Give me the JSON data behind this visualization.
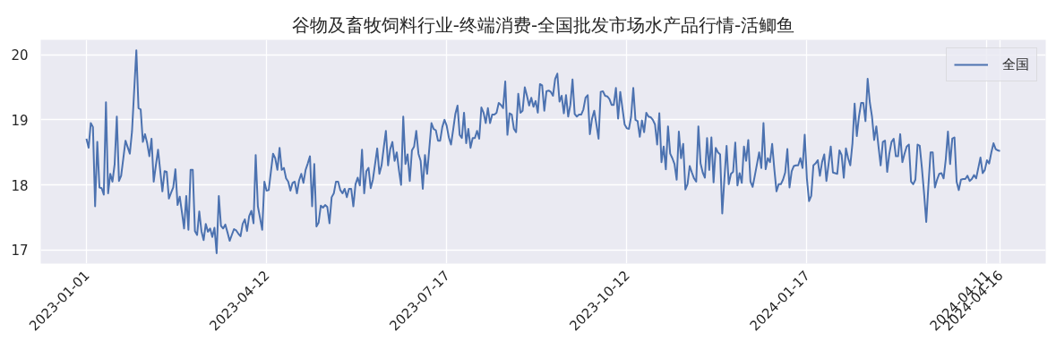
{
  "chart_data": {
    "type": "line",
    "title": "谷物及畜牧饲料行业-终端消费-全国批发市场水产品行情-活鲫鱼",
    "categories": [
      "2023-01-01",
      null,
      null,
      null,
      null,
      null,
      null,
      null,
      null,
      null,
      null,
      null,
      null,
      null,
      null,
      null,
      null,
      null,
      null,
      null,
      null,
      null,
      null,
      null,
      null,
      null,
      null,
      null,
      null,
      null,
      null,
      null,
      null,
      null,
      null,
      null,
      null,
      null,
      null,
      null,
      null,
      null,
      null,
      null,
      null,
      null,
      null,
      null,
      null,
      null,
      null,
      null,
      null,
      null,
      null,
      null,
      null,
      null,
      null,
      null,
      null,
      null,
      null,
      null,
      null,
      null,
      null,
      null,
      null,
      null,
      null,
      null,
      null,
      null,
      null,
      null,
      null,
      null,
      null,
      null,
      null,
      null,
      null,
      "2023-04-12",
      null,
      null,
      null,
      null,
      null,
      null,
      null,
      null,
      null,
      null,
      null,
      null,
      null,
      null,
      null,
      null,
      null,
      null,
      null,
      null,
      null,
      null,
      null,
      null,
      null,
      null,
      null,
      null,
      null,
      null,
      null,
      null,
      null,
      null,
      null,
      null,
      null,
      null,
      null,
      null,
      null,
      null,
      null,
      null,
      null,
      null,
      null,
      null,
      null,
      null,
      null,
      null,
      null,
      null,
      null,
      null,
      null,
      null,
      null,
      null,
      null,
      null,
      null,
      null,
      null,
      null,
      null,
      null,
      null,
      null,
      null,
      null,
      null,
      null,
      null,
      null,
      null,
      null,
      null,
      null,
      null,
      null,
      "2023-07-17",
      null,
      null,
      null,
      null,
      null,
      null,
      null,
      null,
      null,
      null,
      null,
      null,
      null,
      null,
      null,
      null,
      null,
      null,
      null,
      null,
      null,
      null,
      null,
      null,
      null,
      null,
      null,
      null,
      null,
      null,
      null,
      null,
      null,
      null,
      null,
      null,
      null,
      null,
      null,
      null,
      null,
      null,
      null,
      null,
      null,
      null,
      null,
      null,
      null,
      null,
      null,
      null,
      null,
      null,
      null,
      null,
      null,
      null,
      null,
      null,
      null,
      null,
      null,
      null,
      null,
      null,
      null,
      null,
      null,
      null,
      null,
      null,
      null,
      null,
      null,
      null,
      null,
      null,
      null,
      null,
      null,
      null,
      "2023-10-12",
      null,
      null,
      null,
      null,
      null,
      null,
      null,
      null,
      null,
      null,
      null,
      null,
      null,
      null,
      null,
      null,
      null,
      null,
      null,
      null,
      null,
      null,
      null,
      null,
      null,
      null,
      null,
      null,
      null,
      null,
      null,
      null,
      null,
      null,
      null,
      null,
      null,
      null,
      null,
      null,
      null,
      null,
      null,
      null,
      null,
      null,
      null,
      null,
      null,
      null,
      null,
      null,
      null,
      null,
      null,
      null,
      null,
      null,
      null,
      null,
      null,
      null,
      null,
      null,
      null,
      null,
      null,
      null,
      null,
      null,
      null,
      null,
      null,
      null,
      null,
      null,
      null,
      null,
      null,
      null,
      null,
      null,
      "2024-01-17",
      null,
      null,
      null,
      null,
      null,
      null,
      null,
      null,
      null,
      null,
      null,
      null,
      null,
      null,
      null,
      null,
      null,
      null,
      null,
      null,
      null,
      null,
      null,
      null,
      null,
      null,
      null,
      null,
      null,
      null,
      null,
      null,
      null,
      null,
      null,
      null,
      null,
      null,
      null,
      null,
      null,
      null,
      null,
      null,
      null,
      null,
      null,
      null,
      null,
      null,
      null,
      null,
      null,
      null,
      null,
      null,
      null,
      null,
      null,
      null,
      null,
      null,
      null,
      null,
      null,
      null,
      null,
      null,
      null,
      null,
      null,
      null,
      null,
      null,
      null,
      null,
      null,
      null,
      null,
      null,
      null,
      null,
      "2024-04-11",
      null,
      null,
      null,
      null,
      null,
      "2024-04-16"
    ],
    "series": [
      {
        "name": "全国",
        "color": "#4c72b0",
        "values": [
          18.71,
          18.57,
          18.95,
          18.89,
          17.67,
          18.66,
          17.96,
          17.95,
          17.85,
          19.27,
          17.87,
          18.17,
          18.05,
          18.32,
          19.05,
          18.06,
          18.14,
          18.41,
          18.68,
          18.58,
          18.48,
          18.82,
          19.45,
          20.07,
          19.18,
          19.16,
          18.66,
          18.78,
          18.64,
          18.44,
          18.71,
          18.05,
          18.3,
          18.54,
          18.22,
          17.9,
          18.21,
          18.2,
          17.79,
          17.88,
          17.96,
          18.24,
          17.69,
          17.82,
          17.58,
          17.33,
          17.83,
          17.31,
          18.23,
          18.23,
          17.29,
          17.23,
          17.59,
          17.29,
          17.15,
          17.4,
          17.28,
          17.33,
          17.2,
          17.34,
          16.95,
          17.83,
          17.37,
          17.33,
          17.39,
          17.27,
          17.14,
          17.23,
          17.32,
          17.3,
          17.25,
          17.21,
          17.4,
          17.47,
          17.29,
          17.52,
          17.6,
          17.41,
          18.46,
          17.67,
          17.49,
          17.31,
          18.05,
          17.91,
          17.92,
          18.2,
          18.48,
          18.41,
          18.23,
          18.57,
          18.23,
          18.26,
          18.1,
          18.05,
          17.91,
          18.03,
          18.05,
          17.87,
          18.07,
          18.17,
          18.03,
          18.23,
          18.33,
          18.44,
          17.67,
          18.32,
          17.36,
          17.42,
          17.68,
          17.65,
          17.69,
          17.66,
          17.41,
          17.81,
          17.87,
          18.05,
          18.05,
          17.92,
          17.87,
          17.94,
          17.81,
          17.94,
          17.94,
          17.67,
          18.01,
          18.11,
          17.99,
          18.54,
          17.87,
          18.21,
          18.26,
          17.95,
          18.08,
          18.32,
          18.56,
          18.17,
          18.3,
          18.57,
          18.83,
          18.3,
          18.55,
          18.66,
          18.37,
          18.5,
          18.23,
          18.0,
          19.05,
          18.32,
          18.47,
          18.06,
          18.53,
          18.59,
          18.83,
          18.48,
          18.37,
          17.94,
          18.46,
          18.17,
          18.56,
          18.95,
          18.86,
          18.84,
          18.68,
          18.68,
          18.89,
          19.0,
          18.91,
          18.73,
          18.62,
          18.85,
          19.09,
          19.22,
          18.77,
          18.72,
          19.11,
          18.64,
          18.86,
          18.57,
          18.72,
          18.72,
          18.83,
          18.71,
          19.19,
          19.11,
          18.95,
          19.18,
          18.95,
          19.08,
          19.08,
          19.11,
          19.26,
          19.23,
          19.18,
          19.59,
          18.77,
          19.1,
          19.08,
          18.86,
          18.81,
          19.4,
          19.11,
          19.14,
          19.5,
          19.37,
          19.22,
          19.34,
          19.2,
          19.29,
          19.11,
          19.55,
          19.53,
          19.14,
          19.44,
          19.45,
          19.43,
          19.37,
          19.63,
          19.71,
          19.28,
          19.37,
          19.1,
          19.38,
          19.05,
          19.23,
          19.62,
          19.09,
          19.05,
          19.08,
          19.08,
          19.16,
          19.34,
          19.38,
          18.78,
          19.02,
          19.14,
          18.93,
          18.71,
          19.43,
          19.44,
          19.37,
          19.36,
          19.32,
          19.23,
          19.23,
          19.49,
          19.02,
          19.43,
          19.18,
          18.93,
          18.87,
          18.86,
          19.05,
          19.49,
          19.0,
          18.98,
          18.74,
          18.99,
          18.81,
          19.11,
          19.05,
          19.04,
          19.0,
          18.93,
          18.62,
          19.1,
          18.35,
          18.59,
          18.24,
          18.9,
          18.48,
          18.41,
          18.32,
          18.08,
          18.82,
          18.41,
          18.63,
          17.93,
          18.01,
          18.29,
          18.19,
          18.1,
          18.05,
          18.9,
          18.33,
          18.19,
          18.11,
          18.72,
          18.23,
          18.73,
          18.04,
          18.57,
          18.5,
          18.47,
          17.56,
          18.1,
          18.6,
          18.01,
          18.17,
          18.2,
          18.65,
          17.99,
          18.18,
          18.03,
          18.59,
          18.37,
          18.69,
          18.05,
          17.97,
          18.14,
          18.32,
          18.5,
          18.26,
          18.95,
          18.24,
          18.41,
          18.35,
          18.63,
          18.24,
          17.9,
          18.01,
          18.01,
          18.08,
          18.19,
          18.55,
          17.96,
          18.21,
          18.29,
          18.3,
          18.3,
          18.41,
          18.26,
          18.77,
          18.1,
          17.75,
          17.83,
          18.3,
          18.33,
          18.38,
          18.14,
          18.35,
          18.47,
          18.06,
          18.32,
          18.59,
          18.19,
          18.18,
          18.17,
          18.53,
          18.46,
          18.11,
          18.56,
          18.41,
          18.3,
          18.64,
          19.25,
          18.75,
          19.05,
          19.26,
          19.26,
          18.98,
          19.63,
          19.27,
          19.05,
          18.69,
          18.9,
          18.59,
          18.3,
          18.66,
          18.68,
          18.2,
          18.48,
          18.66,
          18.71,
          18.44,
          18.44,
          18.78,
          18.35,
          18.48,
          18.59,
          18.62,
          18.05,
          18.01,
          18.08,
          18.62,
          18.6,
          18.26,
          17.87,
          17.43,
          17.99,
          18.5,
          18.5,
          17.96,
          18.08,
          18.17,
          18.18,
          18.1,
          18.39,
          18.82,
          18.32,
          18.71,
          18.73,
          18.05,
          17.92,
          18.08,
          18.09,
          18.09,
          18.14,
          18.06,
          18.09,
          18.15,
          18.1,
          18.26,
          18.42,
          18.18,
          18.23,
          18.38,
          18.33,
          18.5,
          18.64,
          18.55,
          18.53,
          18.52
        ]
      }
    ],
    "ylim": [
      16.79,
      20.23
    ],
    "yticks": [
      17,
      18,
      19,
      20
    ],
    "grid": true,
    "legend": "top right",
    "line_style": "solid"
  }
}
